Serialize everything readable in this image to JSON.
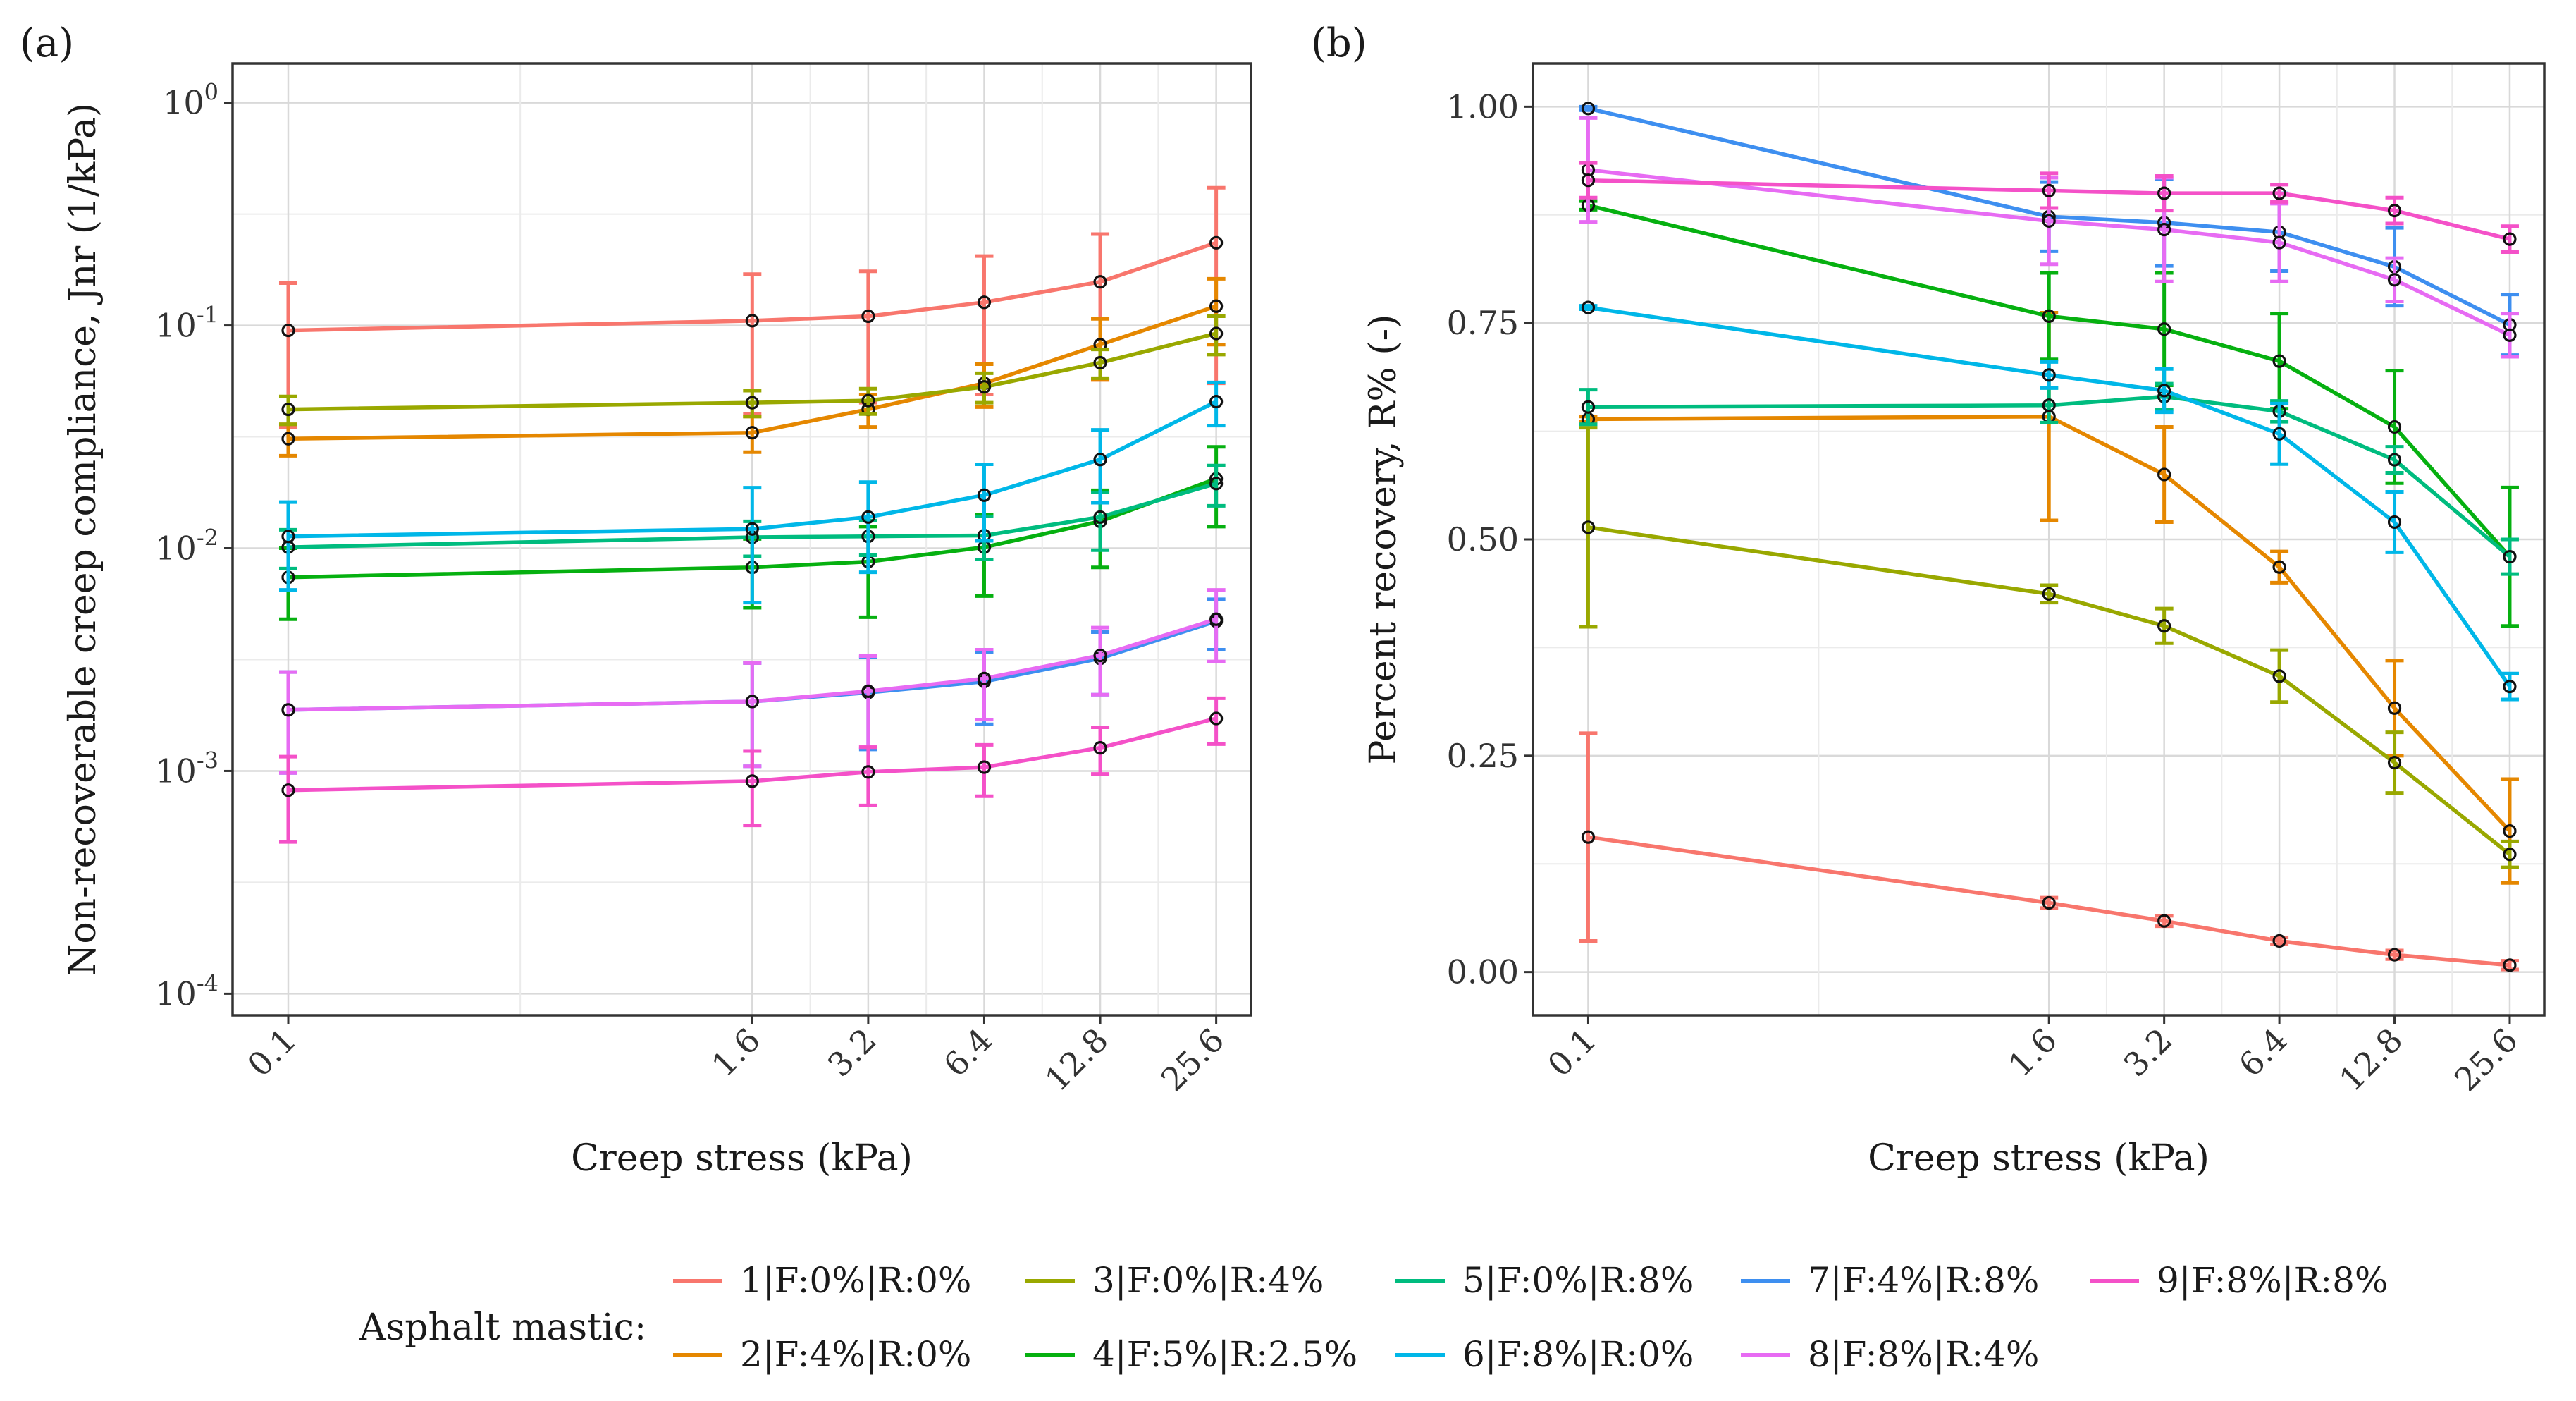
{
  "chart_data": [
    {
      "panel": "(a)",
      "type": "line",
      "xlabel": "Creep stress (kPa)",
      "ylabel": "Non-recoverable creep compliance, Jnr (1/kPa)",
      "x_scale": "log2",
      "y_scale": "log10",
      "x": [
        0.1,
        1.6,
        3.2,
        6.4,
        12.8,
        25.6
      ],
      "xticks": [
        "0.1",
        "1.6",
        "3.2",
        "6.4",
        "12.8",
        "25.6"
      ],
      "yticks": [
        {
          "base": "10",
          "exp": "0"
        },
        {
          "base": "10",
          "exp": "-1"
        },
        {
          "base": "10",
          "exp": "-2"
        },
        {
          "base": "10",
          "exp": "-3"
        },
        {
          "base": "10",
          "exp": "-4"
        }
      ],
      "ylim": [
        8e-05,
        1.5
      ],
      "grid": true,
      "series": [
        {
          "id": 1,
          "values": [
            0.095,
            0.105,
            0.11,
            0.127,
            0.157,
            0.235
          ],
          "err": [
            0.06,
            0.065,
            0.065,
            0.078,
            0.1,
            0.18
          ]
        },
        {
          "id": 2,
          "values": [
            0.031,
            0.033,
            0.042,
            0.055,
            0.082,
            0.122
          ],
          "err": [
            0.005,
            0.006,
            0.007,
            0.012,
            0.025,
            0.04
          ]
        },
        {
          "id": 3,
          "values": [
            0.042,
            0.045,
            0.046,
            0.053,
            0.068,
            0.092
          ],
          "err": [
            0.006,
            0.006,
            0.006,
            0.008,
            0.01,
            0.018
          ]
        },
        {
          "id": 4,
          "values": [
            0.0074,
            0.0082,
            0.0087,
            0.0101,
            0.0132,
            0.0205
          ],
          "err": [
            0.0026,
            0.0028,
            0.0038,
            0.004,
            0.005,
            0.008
          ]
        },
        {
          "id": 5,
          "values": [
            0.0101,
            0.0112,
            0.0113,
            0.0114,
            0.0138,
            0.0195
          ],
          "err": [
            0.002,
            0.002,
            0.002,
            0.0025,
            0.004,
            0.004
          ]
        },
        {
          "id": 6,
          "values": [
            0.0113,
            0.0122,
            0.0138,
            0.0173,
            0.025,
            0.0455
          ],
          "err": [
            0.0048,
            0.0065,
            0.006,
            0.0065,
            0.009,
            0.01
          ]
        },
        {
          "id": 7,
          "values": [
            0.00188,
            0.00205,
            0.00225,
            0.00252,
            0.0032,
            0.0047
          ],
          "err": [
            0.0009,
            0.001,
            0.001,
            0.0009,
            0.001,
            0.0012
          ]
        },
        {
          "id": 8,
          "values": [
            0.00188,
            0.00205,
            0.00228,
            0.0026,
            0.0033,
            0.0048
          ],
          "err": [
            0.0009,
            0.001,
            0.001,
            0.0009,
            0.0011,
            0.0017
          ]
        },
        {
          "id": 9,
          "values": [
            0.00082,
            0.0009,
            0.00099,
            0.00104,
            0.00127,
            0.00172
          ],
          "err": [
            0.00034,
            0.00033,
            0.00029,
            0.00027,
            0.0003,
            0.0004
          ]
        }
      ]
    },
    {
      "panel": "(b)",
      "type": "line",
      "xlabel": "Creep stress (kPa)",
      "ylabel": "Percent recovery, R% (-)",
      "x_scale": "log2",
      "y_scale": "linear",
      "x": [
        0.1,
        1.6,
        3.2,
        6.4,
        12.8,
        25.6
      ],
      "xticks": [
        "0.1",
        "1.6",
        "3.2",
        "6.4",
        "12.8",
        "25.6"
      ],
      "yticks": [
        "0.00",
        "0.25",
        "0.50",
        "0.75",
        "1.00"
      ],
      "ylim": [
        -0.05,
        1.05
      ],
      "grid": true,
      "series": [
        {
          "id": 1,
          "values": [
            0.156,
            0.08,
            0.059,
            0.036,
            0.02,
            0.008
          ],
          "err": [
            0.12,
            0.006,
            0.006,
            0.004,
            0.005,
            0.005
          ]
        },
        {
          "id": 2,
          "values": [
            0.639,
            0.642,
            0.575,
            0.468,
            0.305,
            0.163
          ],
          "err": [
            0.003,
            0.12,
            0.055,
            0.018,
            0.055,
            0.06
          ]
        },
        {
          "id": 3,
          "values": [
            0.514,
            0.437,
            0.4,
            0.342,
            0.242,
            0.136
          ],
          "err": [
            0.115,
            0.01,
            0.02,
            0.03,
            0.035,
            0.015
          ]
        },
        {
          "id": 4,
          "values": [
            0.886,
            0.758,
            0.743,
            0.706,
            0.63,
            0.48
          ],
          "err": [
            0.005,
            0.05,
            0.065,
            0.055,
            0.065,
            0.08
          ]
        },
        {
          "id": 5,
          "values": [
            0.653,
            0.655,
            0.665,
            0.648,
            0.592,
            0.48
          ],
          "err": [
            0.02,
            0.02,
            0.015,
            0.012,
            0.015,
            0.02
          ]
        },
        {
          "id": 6,
          "values": [
            0.768,
            0.69,
            0.672,
            0.622,
            0.52,
            0.33
          ],
          "err": [
            0.002,
            0.015,
            0.025,
            0.035,
            0.035,
            0.015
          ]
        },
        {
          "id": 7,
          "values": [
            0.998,
            0.873,
            0.866,
            0.855,
            0.815,
            0.748
          ],
          "err": [
            0.002,
            0.04,
            0.05,
            0.045,
            0.045,
            0.035
          ]
        },
        {
          "id": 8,
          "values": [
            0.927,
            0.868,
            0.858,
            0.843,
            0.8,
            0.736
          ],
          "err": [
            0.06,
            0.05,
            0.06,
            0.045,
            0.025,
            0.025
          ]
        },
        {
          "id": 9,
          "values": [
            0.915,
            0.903,
            0.9,
            0.9,
            0.88,
            0.847
          ],
          "err": [
            0.02,
            0.02,
            0.02,
            0.01,
            0.015,
            0.015
          ]
        }
      ]
    }
  ],
  "legend": {
    "title": "Asphalt mastic:",
    "items": [
      {
        "id": 1,
        "label": "1|F:0%|R:0%",
        "color": "#F8766D"
      },
      {
        "id": 2,
        "label": "2|F:4%|R:0%",
        "color": "#E58700"
      },
      {
        "id": 3,
        "label": "3|F:0%|R:4%",
        "color": "#99A800"
      },
      {
        "id": 4,
        "label": "4|F:5%|R:2.5%",
        "color": "#06B010"
      },
      {
        "id": 5,
        "label": "5|F:0%|R:8%",
        "color": "#00BC7F"
      },
      {
        "id": 6,
        "label": "6|F:8%|R:0%",
        "color": "#00B7E8"
      },
      {
        "id": 7,
        "label": "7|F:4%|R:8%",
        "color": "#3E8FF0"
      },
      {
        "id": 8,
        "label": "8|F:8%|R:4%",
        "color": "#E76BF3"
      },
      {
        "id": 9,
        "label": "9|F:8%|R:8%",
        "color": "#F451C8"
      }
    ]
  }
}
